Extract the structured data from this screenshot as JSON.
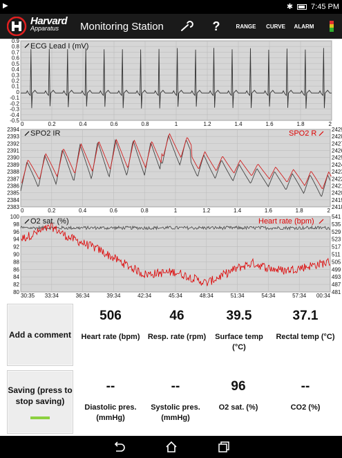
{
  "status_bar": {
    "time": "7:45 PM"
  },
  "app": {
    "brand_name": "Harvard",
    "brand_sub": "Apparatus",
    "title": "Monitoring Station",
    "toolbar": {
      "help": "?",
      "range": "RANGE",
      "curve": "CURVE",
      "alarm": "ALARM"
    }
  },
  "panels": {
    "ecg": {
      "label": "ECG Lead I (mV)"
    },
    "spo2": {
      "left_label": "SPO2 IR",
      "right_label": "SPO2 R"
    },
    "o2": {
      "left_label": "O2 sat. (%)",
      "right_label": "Heart rate (bpm)"
    }
  },
  "buttons": {
    "add_comment": "Add a comment",
    "saving": "Saving (press to stop saving)"
  },
  "metrics": [
    {
      "value": "506",
      "label": "Heart rate (bpm)"
    },
    {
      "value": "46",
      "label": "Resp. rate (rpm)"
    },
    {
      "value": "39.5",
      "label": "Surface temp (°C)"
    },
    {
      "value": "37.1",
      "label": "Rectal temp (°C)"
    },
    {
      "value": "--",
      "label": "Diastolic pres. (mmHg)"
    },
    {
      "value": "--",
      "label": "Systolic pres. (mmHg)"
    },
    {
      "value": "96",
      "label": "O2 sat. (%)"
    },
    {
      "value": "--",
      "label": "CO2 (%)"
    }
  ],
  "chart_data": [
    {
      "type": "line",
      "title": "ECG Lead I (mV)",
      "y_ticks": [
        "0.9",
        "0.8",
        "0.7",
        "0.6",
        "0.5",
        "0.4",
        "0.3",
        "0.2",
        "0.1",
        "0",
        "-0.1",
        "-0.2",
        "-0.3",
        "-0.4",
        "-0.5"
      ],
      "ylim": [
        -0.5,
        0.9
      ],
      "x_ticks": [
        "0",
        "0.2",
        "0.4",
        "0.6",
        "0.8",
        "1",
        "1.2",
        "1.4",
        "1.6",
        "1.8",
        "2"
      ],
      "xlim": [
        0,
        2
      ],
      "series": [
        {
          "color": "#333333",
          "baseline": -0.02,
          "r_peak": 0.78,
          "s_trough": -0.3,
          "beats_per_2s": 17
        }
      ]
    },
    {
      "type": "line",
      "y_ticks": [
        "2394",
        "2393",
        "2392",
        "2391",
        "2390",
        "2389",
        "2388",
        "2387",
        "2386",
        "2385",
        "2384",
        "2383"
      ],
      "ylim": [
        2383,
        2394
      ],
      "y2_ticks": [
        "2429",
        "2428",
        "2427",
        "2426",
        "2425",
        "2424",
        "2423",
        "2422",
        "2421",
        "2420",
        "2419",
        "2418"
      ],
      "x_ticks": [
        "0",
        "0.2",
        "0.4",
        "0.6",
        "0.8",
        "1",
        "1.2",
        "1.4",
        "1.6",
        "1.8",
        "2"
      ],
      "xlim": [
        0,
        2
      ],
      "series": [
        {
          "name": "SPO2 IR",
          "color": "#444444"
        },
        {
          "name": "SPO2 R",
          "color": "#d02020"
        }
      ]
    },
    {
      "type": "line",
      "y_ticks": [
        "100",
        "98",
        "96",
        "94",
        "92",
        "90",
        "88",
        "86",
        "84",
        "82",
        "80"
      ],
      "ylim": [
        80,
        100
      ],
      "y2_ticks": [
        "541",
        "535",
        "529",
        "523",
        "517",
        "511",
        "505",
        "499",
        "493",
        "487",
        "481"
      ],
      "y2lim": [
        481,
        541
      ],
      "x_ticks": [
        "30:35",
        "33:34",
        "36:34",
        "39:34",
        "42:34",
        "45:34",
        "48:34",
        "51:34",
        "54:34",
        "57:34",
        "00:34"
      ],
      "series": [
        {
          "name": "O2 sat. (%)",
          "color": "#444444",
          "level": 97
        },
        {
          "name": "Heart rate (bpm)",
          "color": "#d00000",
          "points": [
            [
              0,
              523
            ],
            [
              0.1,
              533
            ],
            [
              0.15,
              525
            ],
            [
              0.25,
              515
            ],
            [
              0.3,
              508
            ],
            [
              0.4,
              495
            ],
            [
              0.5,
              497
            ],
            [
              0.6,
              488
            ],
            [
              0.7,
              500
            ],
            [
              0.75,
              504
            ],
            [
              0.8,
              500
            ],
            [
              0.85,
              498
            ],
            [
              0.9,
              500
            ],
            [
              1.0,
              505
            ]
          ]
        }
      ]
    }
  ]
}
